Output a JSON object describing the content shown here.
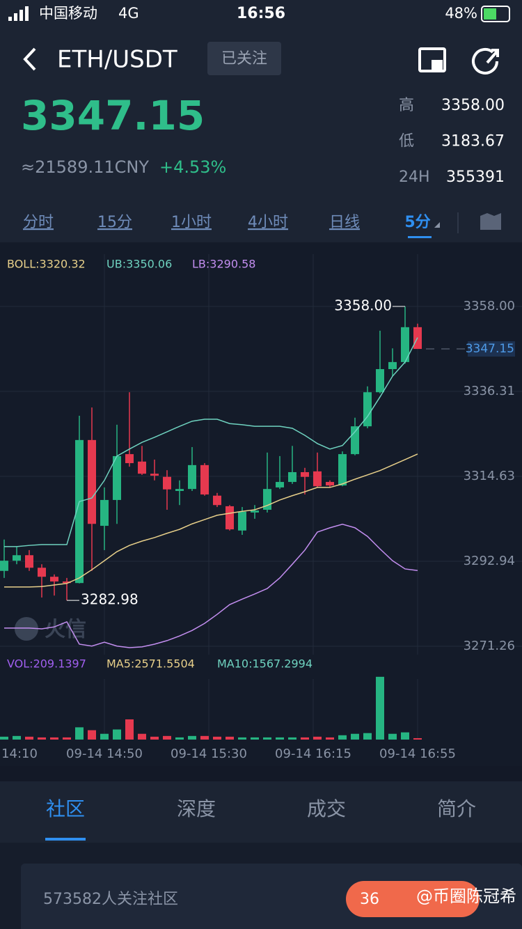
{
  "status_bar": {
    "carrier": "中国移动",
    "network": "4G",
    "time": "16:56",
    "battery": "48%"
  },
  "header": {
    "pair": "ETH/USDT",
    "follow_button": "已关注"
  },
  "ticker": {
    "price": "3347.15",
    "cny": "≈21589.11CNY",
    "change": "+4.53%",
    "stats": [
      {
        "label": "高",
        "value": "3358.00"
      },
      {
        "label": "低",
        "value": "3183.67"
      },
      {
        "label": "24H",
        "value": "355391"
      }
    ]
  },
  "intervals": {
    "items": [
      "分时",
      "15分",
      "1小时",
      "4小时",
      "日线",
      "5分"
    ],
    "active": 5
  },
  "chart_data": {
    "type": "candlestick",
    "legend": [
      "BOLL:3320.32",
      "UB:3350.06",
      "LB:3290.58"
    ],
    "up_color": "#26b582",
    "down_color": "#e6394f",
    "open": [
      3290.5,
      3293.1,
      3294.5,
      3291.3,
      3289.0,
      3287.8,
      3287.4,
      3323.9,
      3302.0,
      3308.6,
      3320.3,
      3318.4,
      3315.3,
      3314.5,
      3310.9,
      3311.4,
      3317.5,
      3309.7,
      3307.0,
      3300.8,
      3305.4,
      3306.1,
      3311.8,
      3313.2,
      3315.7,
      3315.9,
      3313.2,
      3312.3,
      3320.3,
      3327.4,
      3336.1,
      3342.0,
      3343.8,
      3352.7
    ],
    "high": [
      3298.5,
      3296.7,
      3295.8,
      3292.2,
      3289.6,
      3288.7,
      3330.1,
      3332.2,
      3311.8,
      3327.8,
      3336.1,
      3322.4,
      3318.9,
      3316.2,
      3313.6,
      3322.1,
      3318.0,
      3310.4,
      3307.3,
      3306.8,
      3307.3,
      3320.7,
      3319.8,
      3322.4,
      3316.8,
      3320.7,
      3313.6,
      3321.0,
      3329.6,
      3337.6,
      3351.8,
      3347.3,
      3358.0,
      3353.6
    ],
    "low": [
      3288.7,
      3292.2,
      3290.5,
      3283.7,
      3284.2,
      3282.98,
      3287.3,
      3290.5,
      3295.8,
      3302.5,
      3317.1,
      3315.0,
      3313.6,
      3306.1,
      3307.3,
      3310.9,
      3309.7,
      3306.8,
      3300.8,
      3299.7,
      3303.8,
      3305.4,
      3311.4,
      3312.7,
      3310.0,
      3311.8,
      3311.8,
      3312.1,
      3320.0,
      3326.9,
      3335.8,
      3340.2,
      3343.4,
      3347.15
    ],
    "close": [
      3293.1,
      3294.5,
      3291.3,
      3289.0,
      3287.8,
      3287.4,
      3323.9,
      3302.5,
      3308.6,
      3319.8,
      3318.0,
      3315.3,
      3314.8,
      3311.3,
      3311.4,
      3317.5,
      3310.0,
      3307.3,
      3301.1,
      3305.6,
      3305.9,
      3311.4,
      3313.2,
      3315.7,
      3314.5,
      3312.1,
      3312.3,
      3320.3,
      3327.4,
      3336.1,
      3342.0,
      3343.8,
      3352.7,
      3347.15
    ],
    "series": [
      {
        "color": "#6fd3c0",
        "values": [
          3296.7,
          3296.7,
          3297.0,
          3297.2,
          3297.2,
          3297.2,
          3308.2,
          3309.1,
          3313.6,
          3319.8,
          3321.6,
          3323.3,
          3324.6,
          3326.0,
          3327.4,
          3328.7,
          3329.2,
          3329.2,
          3328.1,
          3327.8,
          3327.4,
          3327.4,
          3327.4,
          3326.9,
          3325.1,
          3323.0,
          3321.6,
          3322.5,
          3326.0,
          3329.9,
          3334.9,
          3340.2,
          3343.8,
          3350.06
        ]
      },
      {
        "color": "#e8d08a",
        "values": [
          3286.4,
          3286.4,
          3286.4,
          3286.5,
          3286.9,
          3287.3,
          3288.7,
          3290.8,
          3293.1,
          3295.4,
          3297.0,
          3298.1,
          3299.0,
          3300.1,
          3301.1,
          3302.5,
          3303.6,
          3304.7,
          3305.2,
          3305.7,
          3306.1,
          3307.2,
          3308.6,
          3309.7,
          3310.7,
          3311.8,
          3311.8,
          3312.7,
          3313.9,
          3315.0,
          3316.1,
          3317.5,
          3318.9,
          3320.32
        ]
      },
      {
        "color": "#c38ef0",
        "values": [
          3275.9,
          3275.9,
          3275.9,
          3275.7,
          3276.2,
          3277.5,
          3271.8,
          3271.3,
          3272.3,
          3271.3,
          3270.9,
          3271.1,
          3271.8,
          3272.7,
          3273.9,
          3275.3,
          3277.1,
          3279.4,
          3281.9,
          3283.3,
          3284.6,
          3286.0,
          3288.7,
          3292.2,
          3295.8,
          3300.4,
          3301.5,
          3302.4,
          3301.5,
          3299.3,
          3296.1,
          3293.1,
          3291.0,
          3290.58
        ]
      }
    ],
    "ylim": [
      3271.26,
      3358.0
    ],
    "yticks": [
      {
        "value": 3358.0,
        "label": "3358.00"
      },
      3336.31,
      3314.63,
      3292.94,
      3271.26
    ],
    "high_label": "3358.00",
    "low_label": "3282.98",
    "last_label": "3347.15",
    "last_value": 3347.15,
    "volume": {
      "legend": [
        "VOL:209.1397",
        "MA5:2571.5504",
        "MA10:1567.2994"
      ],
      "ylim": [
        0,
        9500
      ],
      "values": [
        428,
        535,
        428,
        321,
        321,
        321,
        1819,
        1391,
        856,
        1498,
        2996,
        856,
        428,
        535,
        321,
        535,
        535,
        428,
        428,
        321,
        321,
        321,
        321,
        321,
        321,
        428,
        321,
        642,
        856,
        963,
        9309,
        856,
        1070,
        209.1397
      ]
    },
    "time_labels": [
      "14:10",
      "09-14 14:50",
      "09-14 15:30",
      "09-14 16:15",
      "09-14 16:55"
    ],
    "watermark": "火信"
  },
  "tabs": {
    "items": [
      "社区",
      "深度",
      "成交",
      "简介"
    ],
    "active": 0
  },
  "community": {
    "followers": "573582人关注社区",
    "button": "36",
    "watermark": "@币圈陈冠希"
  }
}
